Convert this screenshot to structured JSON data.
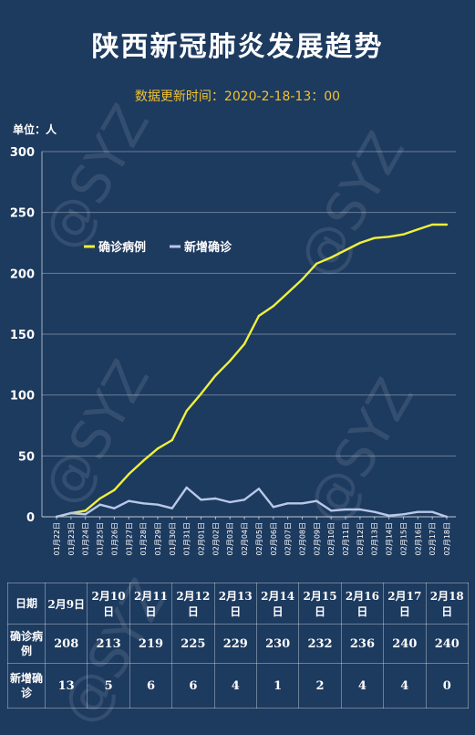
{
  "title": "陕西新冠肺炎发展趋势",
  "update_time": "数据更新时间：2020-2-18-13：00",
  "unit_label": "单位：人",
  "watermark": "@SYZ",
  "colors": {
    "background": "#1d3a5f",
    "confirmed": "#f0f03c",
    "new": "#b8c8e8",
    "accent": "#f2c230"
  },
  "chart_data": {
    "type": "line",
    "x": [
      "01月22日",
      "01月23日",
      "01月24日",
      "01月25日",
      "01月26日",
      "01月27日",
      "01月28日",
      "01月29日",
      "01月30日",
      "01月31日",
      "02月01日",
      "02月02日",
      "02月03日",
      "02月04日",
      "02月05日",
      "02月06日",
      "02月07日",
      "02月08日",
      "02月09日",
      "02月10日",
      "02月11日",
      "02月12日",
      "02月13日",
      "02月14日",
      "02月15日",
      "02月16日",
      "02月17日",
      "02月18日"
    ],
    "series": [
      {
        "name": "确诊病例",
        "color": "#f0f03c",
        "values": [
          0,
          3,
          5,
          15,
          22,
          35,
          46,
          56,
          63,
          87,
          101,
          116,
          128,
          142,
          165,
          173,
          184,
          195,
          208,
          213,
          219,
          225,
          229,
          230,
          232,
          236,
          240,
          240
        ]
      },
      {
        "name": "新增确诊",
        "color": "#b8c8e8",
        "values": [
          0,
          3,
          2,
          10,
          7,
          13,
          11,
          10,
          7,
          24,
          14,
          15,
          12,
          14,
          23,
          8,
          11,
          11,
          13,
          5,
          6,
          6,
          4,
          1,
          2,
          4,
          4,
          0
        ]
      }
    ],
    "ylim": [
      0,
      300
    ],
    "yticks": [
      0,
      50,
      100,
      150,
      200,
      250,
      300
    ],
    "grid": true,
    "legend_position": "top-left"
  },
  "table": {
    "header_label": "日期",
    "confirmed_label": "确诊病例",
    "new_label": "新增确诊",
    "dates": [
      "2月9日",
      "2月10日",
      "2月11日",
      "2月12日",
      "2月13日",
      "2月14日",
      "2月15日",
      "2月16日",
      "2月17日",
      "2月18日"
    ],
    "confirmed": [
      208,
      213,
      219,
      225,
      229,
      230,
      232,
      236,
      240,
      240
    ],
    "new": [
      13,
      5,
      6,
      6,
      4,
      1,
      2,
      4,
      4,
      0
    ]
  }
}
